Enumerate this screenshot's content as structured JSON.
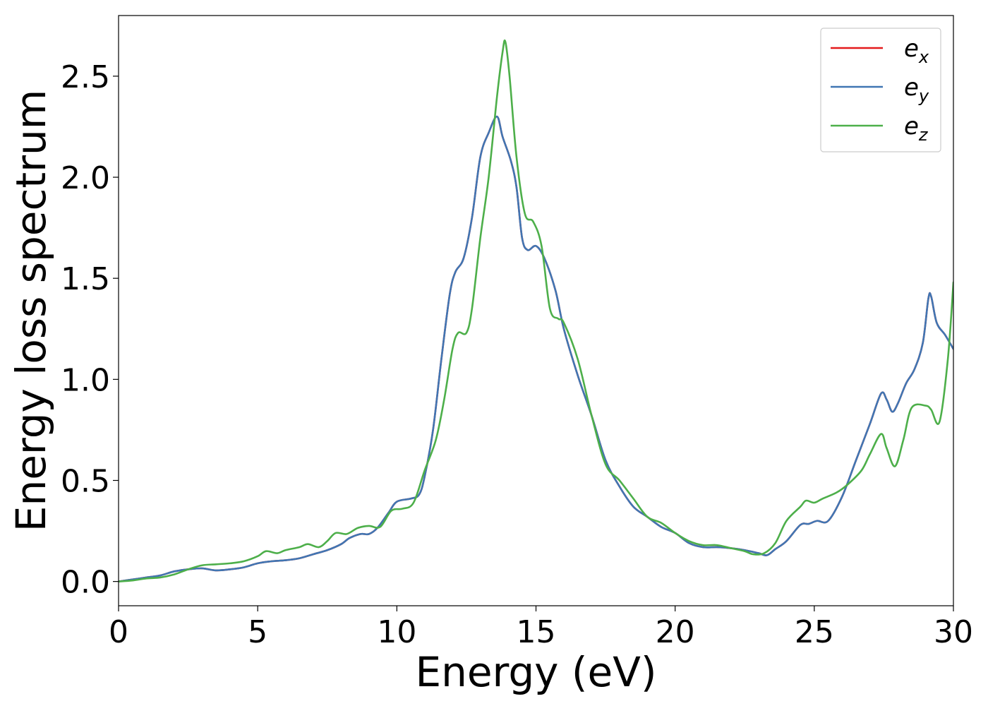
{
  "chart_data": {
    "type": "line",
    "title": "",
    "xlabel": "Energy (eV)",
    "ylabel": "Energy loss spectrum",
    "xlim": [
      0,
      30
    ],
    "ylim": [
      -0.12,
      2.8
    ],
    "grid": false,
    "legend_position": "top-right",
    "x_ticks": [
      0,
      5,
      10,
      15,
      20,
      25,
      30
    ],
    "x_tick_labels": [
      "0",
      "5",
      "10",
      "15",
      "20",
      "25",
      "30"
    ],
    "y_ticks": [
      0.0,
      0.5,
      1.0,
      1.5,
      2.0,
      2.5
    ],
    "y_tick_labels": [
      "0.0",
      "0.5",
      "1.0",
      "1.5",
      "2.0",
      "2.5"
    ],
    "series": [
      {
        "name": "e_x",
        "legend_base": "e",
        "legend_sub": "x",
        "color": "#e41a1c",
        "points": [
          [
            0,
            0.0
          ],
          [
            0.5,
            0.01
          ],
          [
            1,
            0.02
          ],
          [
            1.5,
            0.03
          ],
          [
            2,
            0.05
          ],
          [
            2.5,
            0.06
          ],
          [
            3,
            0.065
          ],
          [
            3.5,
            0.055
          ],
          [
            4,
            0.06
          ],
          [
            4.5,
            0.07
          ],
          [
            5,
            0.09
          ],
          [
            5.5,
            0.1
          ],
          [
            6,
            0.105
          ],
          [
            6.5,
            0.115
          ],
          [
            7,
            0.135
          ],
          [
            7.5,
            0.155
          ],
          [
            8,
            0.185
          ],
          [
            8.3,
            0.215
          ],
          [
            8.7,
            0.235
          ],
          [
            9,
            0.235
          ],
          [
            9.3,
            0.265
          ],
          [
            9.7,
            0.34
          ],
          [
            10,
            0.395
          ],
          [
            10.5,
            0.41
          ],
          [
            10.8,
            0.43
          ],
          [
            11,
            0.52
          ],
          [
            11.3,
            0.75
          ],
          [
            11.6,
            1.1
          ],
          [
            11.9,
            1.42
          ],
          [
            12.1,
            1.53
          ],
          [
            12.4,
            1.6
          ],
          [
            12.7,
            1.8
          ],
          [
            13,
            2.1
          ],
          [
            13.3,
            2.22
          ],
          [
            13.6,
            2.3
          ],
          [
            13.8,
            2.2
          ],
          [
            14.1,
            2.08
          ],
          [
            14.3,
            1.95
          ],
          [
            14.5,
            1.7
          ],
          [
            14.7,
            1.64
          ],
          [
            15,
            1.66
          ],
          [
            15.3,
            1.6
          ],
          [
            15.7,
            1.44
          ],
          [
            16,
            1.25
          ],
          [
            16.5,
            1.02
          ],
          [
            17,
            0.82
          ],
          [
            17.5,
            0.6
          ],
          [
            18,
            0.47
          ],
          [
            18.5,
            0.37
          ],
          [
            19,
            0.32
          ],
          [
            19.5,
            0.27
          ],
          [
            20,
            0.24
          ],
          [
            20.5,
            0.19
          ],
          [
            21,
            0.17
          ],
          [
            21.5,
            0.17
          ],
          [
            22,
            0.165
          ],
          [
            22.5,
            0.155
          ],
          [
            23,
            0.14
          ],
          [
            23.3,
            0.13
          ],
          [
            23.6,
            0.16
          ],
          [
            24,
            0.2
          ],
          [
            24.5,
            0.28
          ],
          [
            24.8,
            0.285
          ],
          [
            25.1,
            0.3
          ],
          [
            25.5,
            0.3
          ],
          [
            26,
            0.42
          ],
          [
            26.5,
            0.6
          ],
          [
            27,
            0.78
          ],
          [
            27.4,
            0.93
          ],
          [
            27.6,
            0.9
          ],
          [
            27.8,
            0.84
          ],
          [
            28,
            0.88
          ],
          [
            28.3,
            0.98
          ],
          [
            28.6,
            1.05
          ],
          [
            28.9,
            1.18
          ],
          [
            29.1,
            1.4
          ],
          [
            29.2,
            1.41
          ],
          [
            29.4,
            1.28
          ],
          [
            29.7,
            1.22
          ],
          [
            30,
            1.15
          ]
        ]
      },
      {
        "name": "e_y",
        "legend_base": "e",
        "legend_sub": "y",
        "color": "#4076b3",
        "points": [
          [
            0,
            0.0
          ],
          [
            0.5,
            0.01
          ],
          [
            1,
            0.02
          ],
          [
            1.5,
            0.03
          ],
          [
            2,
            0.05
          ],
          [
            2.5,
            0.06
          ],
          [
            3,
            0.065
          ],
          [
            3.5,
            0.055
          ],
          [
            4,
            0.06
          ],
          [
            4.5,
            0.07
          ],
          [
            5,
            0.09
          ],
          [
            5.5,
            0.1
          ],
          [
            6,
            0.105
          ],
          [
            6.5,
            0.115
          ],
          [
            7,
            0.135
          ],
          [
            7.5,
            0.155
          ],
          [
            8,
            0.185
          ],
          [
            8.3,
            0.215
          ],
          [
            8.7,
            0.235
          ],
          [
            9,
            0.235
          ],
          [
            9.3,
            0.265
          ],
          [
            9.7,
            0.34
          ],
          [
            10,
            0.395
          ],
          [
            10.5,
            0.41
          ],
          [
            10.8,
            0.43
          ],
          [
            11,
            0.52
          ],
          [
            11.3,
            0.75
          ],
          [
            11.6,
            1.1
          ],
          [
            11.9,
            1.42
          ],
          [
            12.1,
            1.53
          ],
          [
            12.4,
            1.6
          ],
          [
            12.7,
            1.8
          ],
          [
            13,
            2.1
          ],
          [
            13.3,
            2.22
          ],
          [
            13.6,
            2.3
          ],
          [
            13.8,
            2.2
          ],
          [
            14.1,
            2.08
          ],
          [
            14.3,
            1.95
          ],
          [
            14.5,
            1.7
          ],
          [
            14.7,
            1.64
          ],
          [
            15,
            1.66
          ],
          [
            15.3,
            1.6
          ],
          [
            15.7,
            1.44
          ],
          [
            16,
            1.25
          ],
          [
            16.5,
            1.02
          ],
          [
            17,
            0.82
          ],
          [
            17.5,
            0.6
          ],
          [
            18,
            0.47
          ],
          [
            18.5,
            0.37
          ],
          [
            19,
            0.32
          ],
          [
            19.5,
            0.27
          ],
          [
            20,
            0.24
          ],
          [
            20.5,
            0.19
          ],
          [
            21,
            0.17
          ],
          [
            21.5,
            0.17
          ],
          [
            22,
            0.165
          ],
          [
            22.5,
            0.155
          ],
          [
            23,
            0.14
          ],
          [
            23.3,
            0.13
          ],
          [
            23.6,
            0.16
          ],
          [
            24,
            0.2
          ],
          [
            24.5,
            0.28
          ],
          [
            24.8,
            0.285
          ],
          [
            25.1,
            0.3
          ],
          [
            25.5,
            0.3
          ],
          [
            26,
            0.42
          ],
          [
            26.5,
            0.6
          ],
          [
            27,
            0.78
          ],
          [
            27.4,
            0.93
          ],
          [
            27.6,
            0.9
          ],
          [
            27.8,
            0.84
          ],
          [
            28,
            0.88
          ],
          [
            28.3,
            0.98
          ],
          [
            28.6,
            1.05
          ],
          [
            28.9,
            1.18
          ],
          [
            29.1,
            1.4
          ],
          [
            29.2,
            1.41
          ],
          [
            29.4,
            1.28
          ],
          [
            29.7,
            1.22
          ],
          [
            30,
            1.15
          ]
        ]
      },
      {
        "name": "e_z",
        "legend_base": "e",
        "legend_sub": "z",
        "color": "#4daf4a",
        "points": [
          [
            0,
            0.0
          ],
          [
            0.5,
            0.005
          ],
          [
            1,
            0.015
          ],
          [
            1.5,
            0.02
          ],
          [
            2,
            0.035
          ],
          [
            2.5,
            0.06
          ],
          [
            3,
            0.08
          ],
          [
            3.5,
            0.085
          ],
          [
            4,
            0.09
          ],
          [
            4.5,
            0.1
          ],
          [
            5,
            0.125
          ],
          [
            5.3,
            0.15
          ],
          [
            5.7,
            0.14
          ],
          [
            6,
            0.155
          ],
          [
            6.5,
            0.17
          ],
          [
            6.8,
            0.185
          ],
          [
            7.2,
            0.17
          ],
          [
            7.5,
            0.2
          ],
          [
            7.8,
            0.24
          ],
          [
            8.2,
            0.235
          ],
          [
            8.6,
            0.265
          ],
          [
            9,
            0.275
          ],
          [
            9.4,
            0.27
          ],
          [
            9.8,
            0.35
          ],
          [
            10.2,
            0.36
          ],
          [
            10.6,
            0.39
          ],
          [
            11,
            0.55
          ],
          [
            11.4,
            0.7
          ],
          [
            11.7,
            0.9
          ],
          [
            12,
            1.15
          ],
          [
            12.2,
            1.23
          ],
          [
            12.5,
            1.23
          ],
          [
            12.7,
            1.35
          ],
          [
            13,
            1.7
          ],
          [
            13.3,
            2.0
          ],
          [
            13.6,
            2.4
          ],
          [
            13.8,
            2.62
          ],
          [
            13.9,
            2.67
          ],
          [
            14.05,
            2.5
          ],
          [
            14.3,
            2.1
          ],
          [
            14.6,
            1.82
          ],
          [
            14.9,
            1.78
          ],
          [
            15.2,
            1.66
          ],
          [
            15.5,
            1.35
          ],
          [
            15.8,
            1.3
          ],
          [
            16,
            1.28
          ],
          [
            16.5,
            1.1
          ],
          [
            17,
            0.82
          ],
          [
            17.5,
            0.58
          ],
          [
            18,
            0.5
          ],
          [
            18.5,
            0.41
          ],
          [
            19,
            0.32
          ],
          [
            19.5,
            0.29
          ],
          [
            20,
            0.24
          ],
          [
            20.5,
            0.2
          ],
          [
            21,
            0.18
          ],
          [
            21.5,
            0.18
          ],
          [
            22,
            0.165
          ],
          [
            22.5,
            0.15
          ],
          [
            22.8,
            0.135
          ],
          [
            23.2,
            0.14
          ],
          [
            23.6,
            0.19
          ],
          [
            24,
            0.3
          ],
          [
            24.5,
            0.37
          ],
          [
            24.7,
            0.4
          ],
          [
            25,
            0.39
          ],
          [
            25.3,
            0.41
          ],
          [
            25.8,
            0.44
          ],
          [
            26.2,
            0.48
          ],
          [
            26.7,
            0.55
          ],
          [
            27,
            0.63
          ],
          [
            27.4,
            0.73
          ],
          [
            27.6,
            0.66
          ],
          [
            27.9,
            0.57
          ],
          [
            28.2,
            0.7
          ],
          [
            28.5,
            0.86
          ],
          [
            29,
            0.87
          ],
          [
            29.2,
            0.85
          ],
          [
            29.5,
            0.79
          ],
          [
            29.8,
            1.1
          ],
          [
            30,
            1.48
          ]
        ]
      }
    ]
  }
}
